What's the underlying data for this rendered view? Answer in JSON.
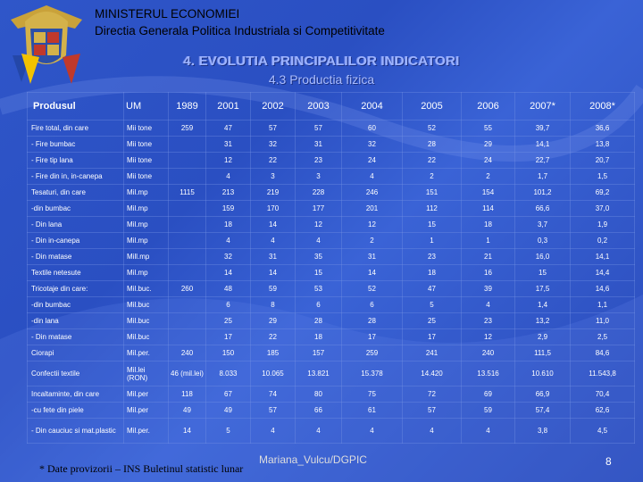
{
  "header": {
    "ministry": "MINISTERUL ECONOMIEI",
    "directorate": "Directia Generala Politica Industriala si Competitivitate"
  },
  "title": "4. EVOLUTIA PRINCIPALILOR INDICATORI",
  "subtitle": "4.3 Productia fizica",
  "table": {
    "columns": [
      "Produsul",
      "UM",
      "1989",
      "2001",
      "2002",
      "2003",
      "2004",
      "2005",
      "2006",
      "2007*",
      "2008*"
    ],
    "rows": [
      {
        "name": "Fire total, din care",
        "um": "Mii tone",
        "v": [
          "259",
          "47",
          "57",
          "57",
          "60",
          "52",
          "55",
          "39,7",
          "36,6"
        ]
      },
      {
        "name": "- Fire bumbac",
        "um": "Mii tone",
        "v": [
          "",
          "31",
          "32",
          "31",
          "32",
          "28",
          "29",
          "14,1",
          "13,8"
        ]
      },
      {
        "name": "- Fire tip lana",
        "um": "Mii tone",
        "v": [
          "",
          "12",
          "22",
          "23",
          "24",
          "22",
          "24",
          "22,7",
          "20,7"
        ]
      },
      {
        "name": "- Fire din in, in-canepa",
        "um": "Mii tone",
        "v": [
          "",
          "4",
          "3",
          "3",
          "4",
          "2",
          "2",
          "1,7",
          "1,5"
        ]
      },
      {
        "name": "Tesaturi, din care",
        "um": "Mil.mp",
        "v": [
          "1115",
          "213",
          "219",
          "228",
          "246",
          "151",
          "154",
          "101,2",
          "69,2"
        ]
      },
      {
        "name": "-din bumbac",
        "um": "Mil.mp",
        "v": [
          "",
          "159",
          "170",
          "177",
          "201",
          "112",
          "114",
          "66,6",
          "37,0"
        ]
      },
      {
        "name": "- Din lana",
        "um": "Mil.mp",
        "v": [
          "",
          "18",
          "14",
          "12",
          "12",
          "15",
          "18",
          "3,7",
          "1,9"
        ]
      },
      {
        "name": "- Din in-canepa",
        "um": "Mil.mp",
        "v": [
          "",
          "4",
          "4",
          "4",
          "2",
          "1",
          "1",
          "0,3",
          "0,2"
        ]
      },
      {
        "name": "- Din matase",
        "um": "Mill.mp",
        "v": [
          "",
          "32",
          "31",
          "35",
          "31",
          "23",
          "21",
          "16,0",
          "14,1"
        ]
      },
      {
        "name": "Textile netesute",
        "um": "Mil.mp",
        "v": [
          "",
          "14",
          "14",
          "15",
          "14",
          "18",
          "16",
          "15",
          "14,4"
        ]
      },
      {
        "name": "Tricotaje din care:",
        "um": "Mil.buc.",
        "v": [
          "260",
          "48",
          "59",
          "53",
          "52",
          "47",
          "39",
          "17,5",
          "14,6"
        ]
      },
      {
        "name": "-din bumbac",
        "um": "Mil.buc",
        "v": [
          "",
          "6",
          "8",
          "6",
          "6",
          "5",
          "4",
          "1,4",
          "1,1"
        ]
      },
      {
        "name": "-din lana",
        "um": "Mil.buc",
        "v": [
          "",
          "25",
          "29",
          "28",
          "28",
          "25",
          "23",
          "13,2",
          "11,0"
        ]
      },
      {
        "name": "- Din matase",
        "um": "Mil.buc",
        "v": [
          "",
          "17",
          "22",
          "18",
          "17",
          "17",
          "12",
          "2,9",
          "2,5"
        ]
      },
      {
        "name": "Ciorapi",
        "um": "Mil.per.",
        "v": [
          "240",
          "150",
          "185",
          "157",
          "259",
          "241",
          "240",
          "111,5",
          "84,6"
        ]
      },
      {
        "name": "Confectii textile",
        "um": "Mil.lei (RON)",
        "v": [
          "46 (mil.lei)",
          "8.033",
          "10.065",
          "13.821",
          "15.378",
          "14.420",
          "13.516",
          "10.610",
          "11.543,8"
        ],
        "tall": true
      },
      {
        "name": "Incaltaminte, din care",
        "um": "Mil.per",
        "v": [
          "118",
          "67",
          "74",
          "80",
          "75",
          "72",
          "69",
          "66,9",
          "70,4"
        ]
      },
      {
        "name": "-cu fete din piele",
        "um": "Mil.per",
        "v": [
          "49",
          "49",
          "57",
          "66",
          "61",
          "57",
          "59",
          "57,4",
          "62,6"
        ]
      },
      {
        "name": "- Din cauciuc si mat.plastic",
        "um": "Mil.per.",
        "v": [
          "14",
          "5",
          "4",
          "4",
          "4",
          "4",
          "4",
          "3,8",
          "4,5"
        ],
        "tall": true
      }
    ]
  },
  "footnote": "* Date provizorii – INS Buletinul statistic lunar",
  "author": "Mariana_Vulcu/DGPIC",
  "page_number": "8",
  "colors": {
    "background": "#2f56c9",
    "title": "#9db3ff"
  }
}
